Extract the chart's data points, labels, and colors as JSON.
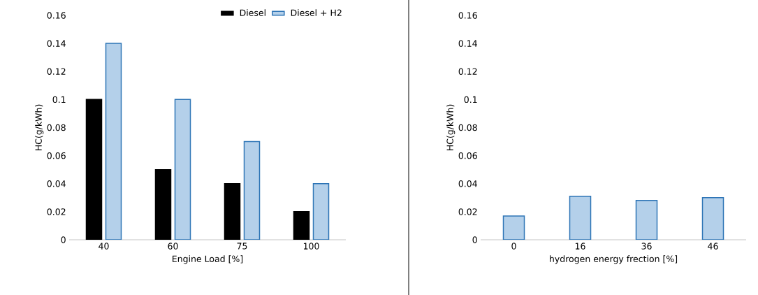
{
  "chart_data": [
    {
      "type": "bar",
      "categories": [
        "40",
        "60",
        "75",
        "100"
      ],
      "xlabel": "Engine Load [%]",
      "ylabel": "HC(g/kWh)",
      "ylim": [
        0,
        0.16
      ],
      "yticks": [
        0,
        0.02,
        0.04,
        0.06,
        0.08,
        0.1,
        0.12,
        0.14,
        0.16
      ],
      "grid": false,
      "legend": "top right",
      "series": [
        {
          "name": "Diesel",
          "color": "#000000",
          "values": [
            0.1,
            0.05,
            0.04,
            0.02
          ]
        },
        {
          "name": "Diesel + H2",
          "color": "#b4d0ea",
          "values": [
            0.14,
            0.1,
            0.07,
            0.04
          ]
        }
      ]
    },
    {
      "type": "bar",
      "categories": [
        "0",
        "16",
        "36",
        "46"
      ],
      "xlabel": "hydrogen energy frection [%]",
      "ylabel": "HC(g/kWh)",
      "ylim": [
        0,
        0.16
      ],
      "yticks": [
        0,
        0.02,
        0.04,
        0.06,
        0.08,
        0.1,
        0.12,
        0.14,
        0.16
      ],
      "grid": false,
      "series": [
        {
          "color": "#b4d0ea",
          "values": [
            0.017,
            0.031,
            0.028,
            0.03
          ]
        }
      ]
    }
  ]
}
